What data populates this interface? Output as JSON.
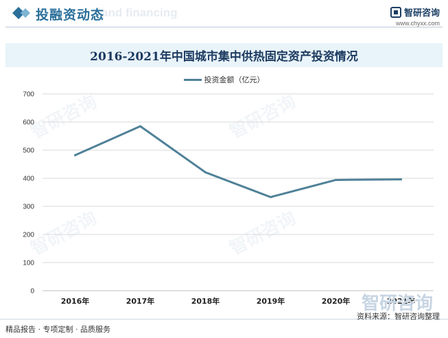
{
  "header": {
    "title": "投融资动态",
    "watermark_en": "and financing",
    "brand_name": "智研咨询",
    "brand_url": "www.chyxx.com"
  },
  "chart_data": {
    "type": "line",
    "title": "2016-2021年中国城市集中供热固定资产投资情况",
    "categories": [
      "2016年",
      "2017年",
      "2018年",
      "2019年",
      "2020年",
      "2021年"
    ],
    "series": [
      {
        "name": "投资金额（亿元）",
        "values": [
          482,
          585,
          421,
          333,
          394,
          396
        ],
        "color": "#4f8198"
      }
    ],
    "ylim": [
      0,
      700
    ],
    "yticks": [
      0,
      100,
      200,
      300,
      400,
      500,
      600,
      700
    ],
    "grid": true,
    "legend": "top-center"
  },
  "footer": {
    "left": "精品报告 · 专项定制 · 品质服务",
    "source": "资料来源：智研咨询整理",
    "watermark": "智研咨询"
  }
}
